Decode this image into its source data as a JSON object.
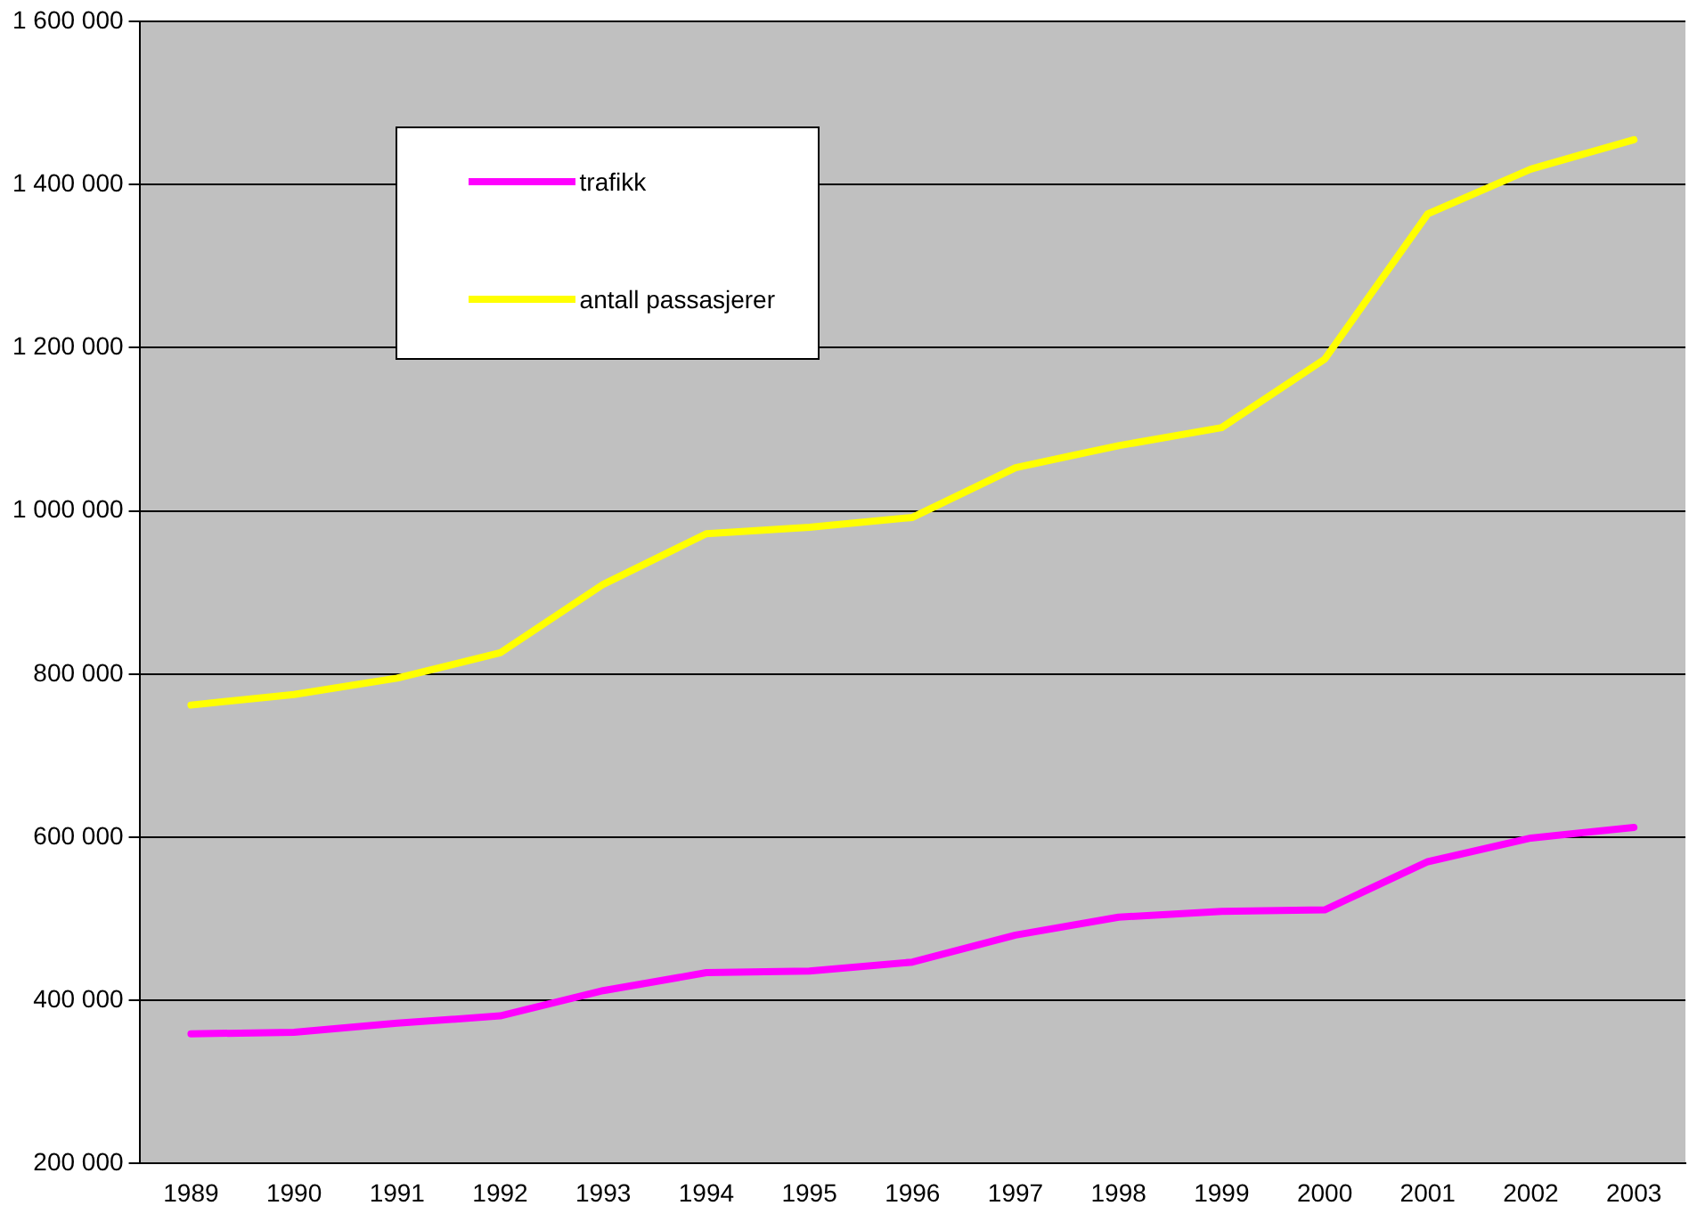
{
  "chart_data": {
    "type": "line",
    "categories": [
      "1989",
      "1990",
      "1991",
      "1992",
      "1993",
      "1994",
      "1995",
      "1996",
      "1997",
      "1998",
      "1999",
      "2000",
      "2001",
      "2002",
      "2003"
    ],
    "series": [
      {
        "name": "trafikk",
        "color": "#ff00ff",
        "values": [
          359000,
          361000,
          372000,
          381000,
          412000,
          434000,
          436000,
          447000,
          480000,
          502000,
          509000,
          511000,
          570000,
          599000,
          612000
        ]
      },
      {
        "name": "antall passasjerer",
        "color": "#ffff00",
        "values": [
          762000,
          775000,
          795000,
          826000,
          910000,
          972000,
          980000,
          992000,
          1053000,
          1080000,
          1102000,
          1186000,
          1364000,
          1419000,
          1455000
        ]
      }
    ],
    "ylim": [
      200000,
      1600000
    ],
    "yticks": [
      {
        "value": 200000,
        "label": "200 000"
      },
      {
        "value": 400000,
        "label": "400 000"
      },
      {
        "value": 600000,
        "label": "600 000"
      },
      {
        "value": 800000,
        "label": "800 000"
      },
      {
        "value": 1000000,
        "label": "1 000 000"
      },
      {
        "value": 1200000,
        "label": "1 200 000"
      },
      {
        "value": 1400000,
        "label": "1 400 000"
      },
      {
        "value": 1600000,
        "label": "1 600 000"
      }
    ],
    "grid": "y",
    "legend": "top left",
    "marker": "none",
    "line_style": "solid"
  }
}
